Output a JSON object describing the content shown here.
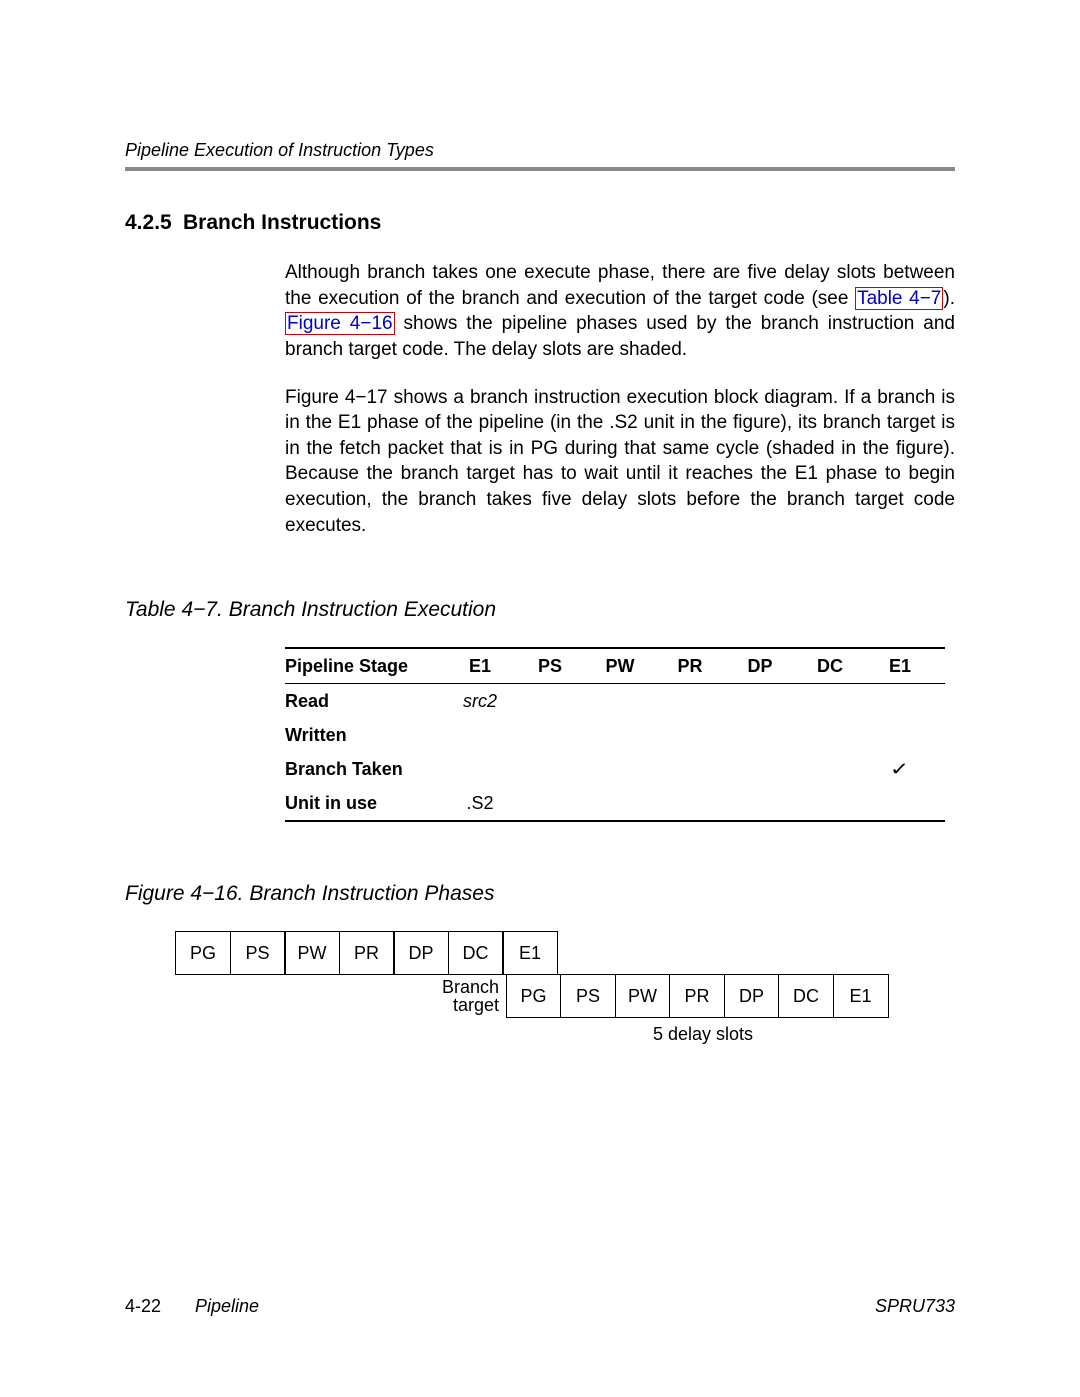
{
  "running_head": "Pipeline Execution of Instruction Types",
  "section": {
    "number": "4.2.5",
    "title": "Branch Instructions"
  },
  "para1": {
    "pre": "Although branch takes one execute phase, there are five delay slots between the execution of the branch and execution of the target code (see ",
    "link1": "Table 4−7",
    "mid": "). ",
    "link2": "Figure 4−16",
    "post": " shows the pipeline phases used by the branch instruction and branch target code. The delay slots are shaded."
  },
  "para2": "Figure 4−17 shows a branch instruction execution block diagram. If a branch is in the E1 phase of the pipeline (in the .S2 unit in the figure), its branch target is in the fetch packet that is in PG during that same cycle (shaded in the figure). Because the branch target has to wait until it reaches the E1 phase to begin execution, the branch takes five delay slots before the branch target code executes.",
  "table47": {
    "title": "Table 4−7. Branch Instruction Execution",
    "header": [
      "Pipeline Stage",
      "E1",
      "PS",
      "PW",
      "PR",
      "DP",
      "DC",
      "E1"
    ],
    "rows": {
      "read": {
        "label": "Read",
        "c1": "src2",
        "c2": "",
        "c3": "",
        "c4": "",
        "c5": "",
        "c6": "",
        "c7": ""
      },
      "written": {
        "label": "Written",
        "c1": "",
        "c2": "",
        "c3": "",
        "c4": "",
        "c5": "",
        "c6": "",
        "c7": ""
      },
      "branch": {
        "label": "Branch Taken",
        "c1": "",
        "c2": "",
        "c3": "",
        "c4": "",
        "c5": "",
        "c6": "",
        "c7": "✓"
      },
      "unit": {
        "label": "Unit in use",
        "c1": ".S2",
        "c2": "",
        "c3": "",
        "c4": "",
        "c5": "",
        "c6": "",
        "c7": ""
      }
    }
  },
  "fig416": {
    "title": "Figure 4−16. Branch Instruction Phases",
    "row1": [
      "PG",
      "PS",
      "PW",
      "PR",
      "DP",
      "DC",
      "E1"
    ],
    "branch_label_l1": "Branch",
    "branch_label_l2": "target",
    "row2": [
      "PG",
      "PS",
      "PW",
      "PR",
      "DP",
      "DC",
      "E1"
    ],
    "delay_caption": "5 delay slots"
  },
  "footer": {
    "page": "4-22",
    "chapter": "Pipeline",
    "doc": "SPRU733"
  }
}
